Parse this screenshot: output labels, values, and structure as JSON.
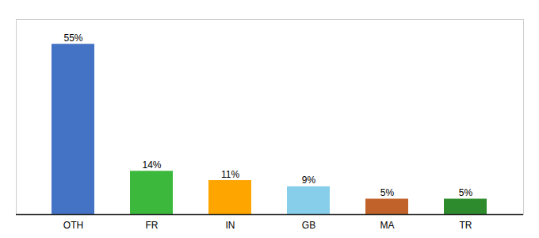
{
  "chart_data": {
    "type": "bar",
    "categories": [
      "OTH",
      "FR",
      "IN",
      "GB",
      "MA",
      "TR"
    ],
    "values": [
      55,
      14,
      11,
      9,
      5,
      5
    ],
    "value_labels": [
      "55%",
      "14%",
      "11%",
      "9%",
      "5%",
      "5%"
    ],
    "colors": [
      "#4472C4",
      "#3CB93C",
      "#FFA500",
      "#87CEEB",
      "#C0622A",
      "#2D8B2D"
    ],
    "ylim": [
      0,
      63
    ],
    "data_labels": true,
    "tick_labels": "x",
    "grid": false
  }
}
